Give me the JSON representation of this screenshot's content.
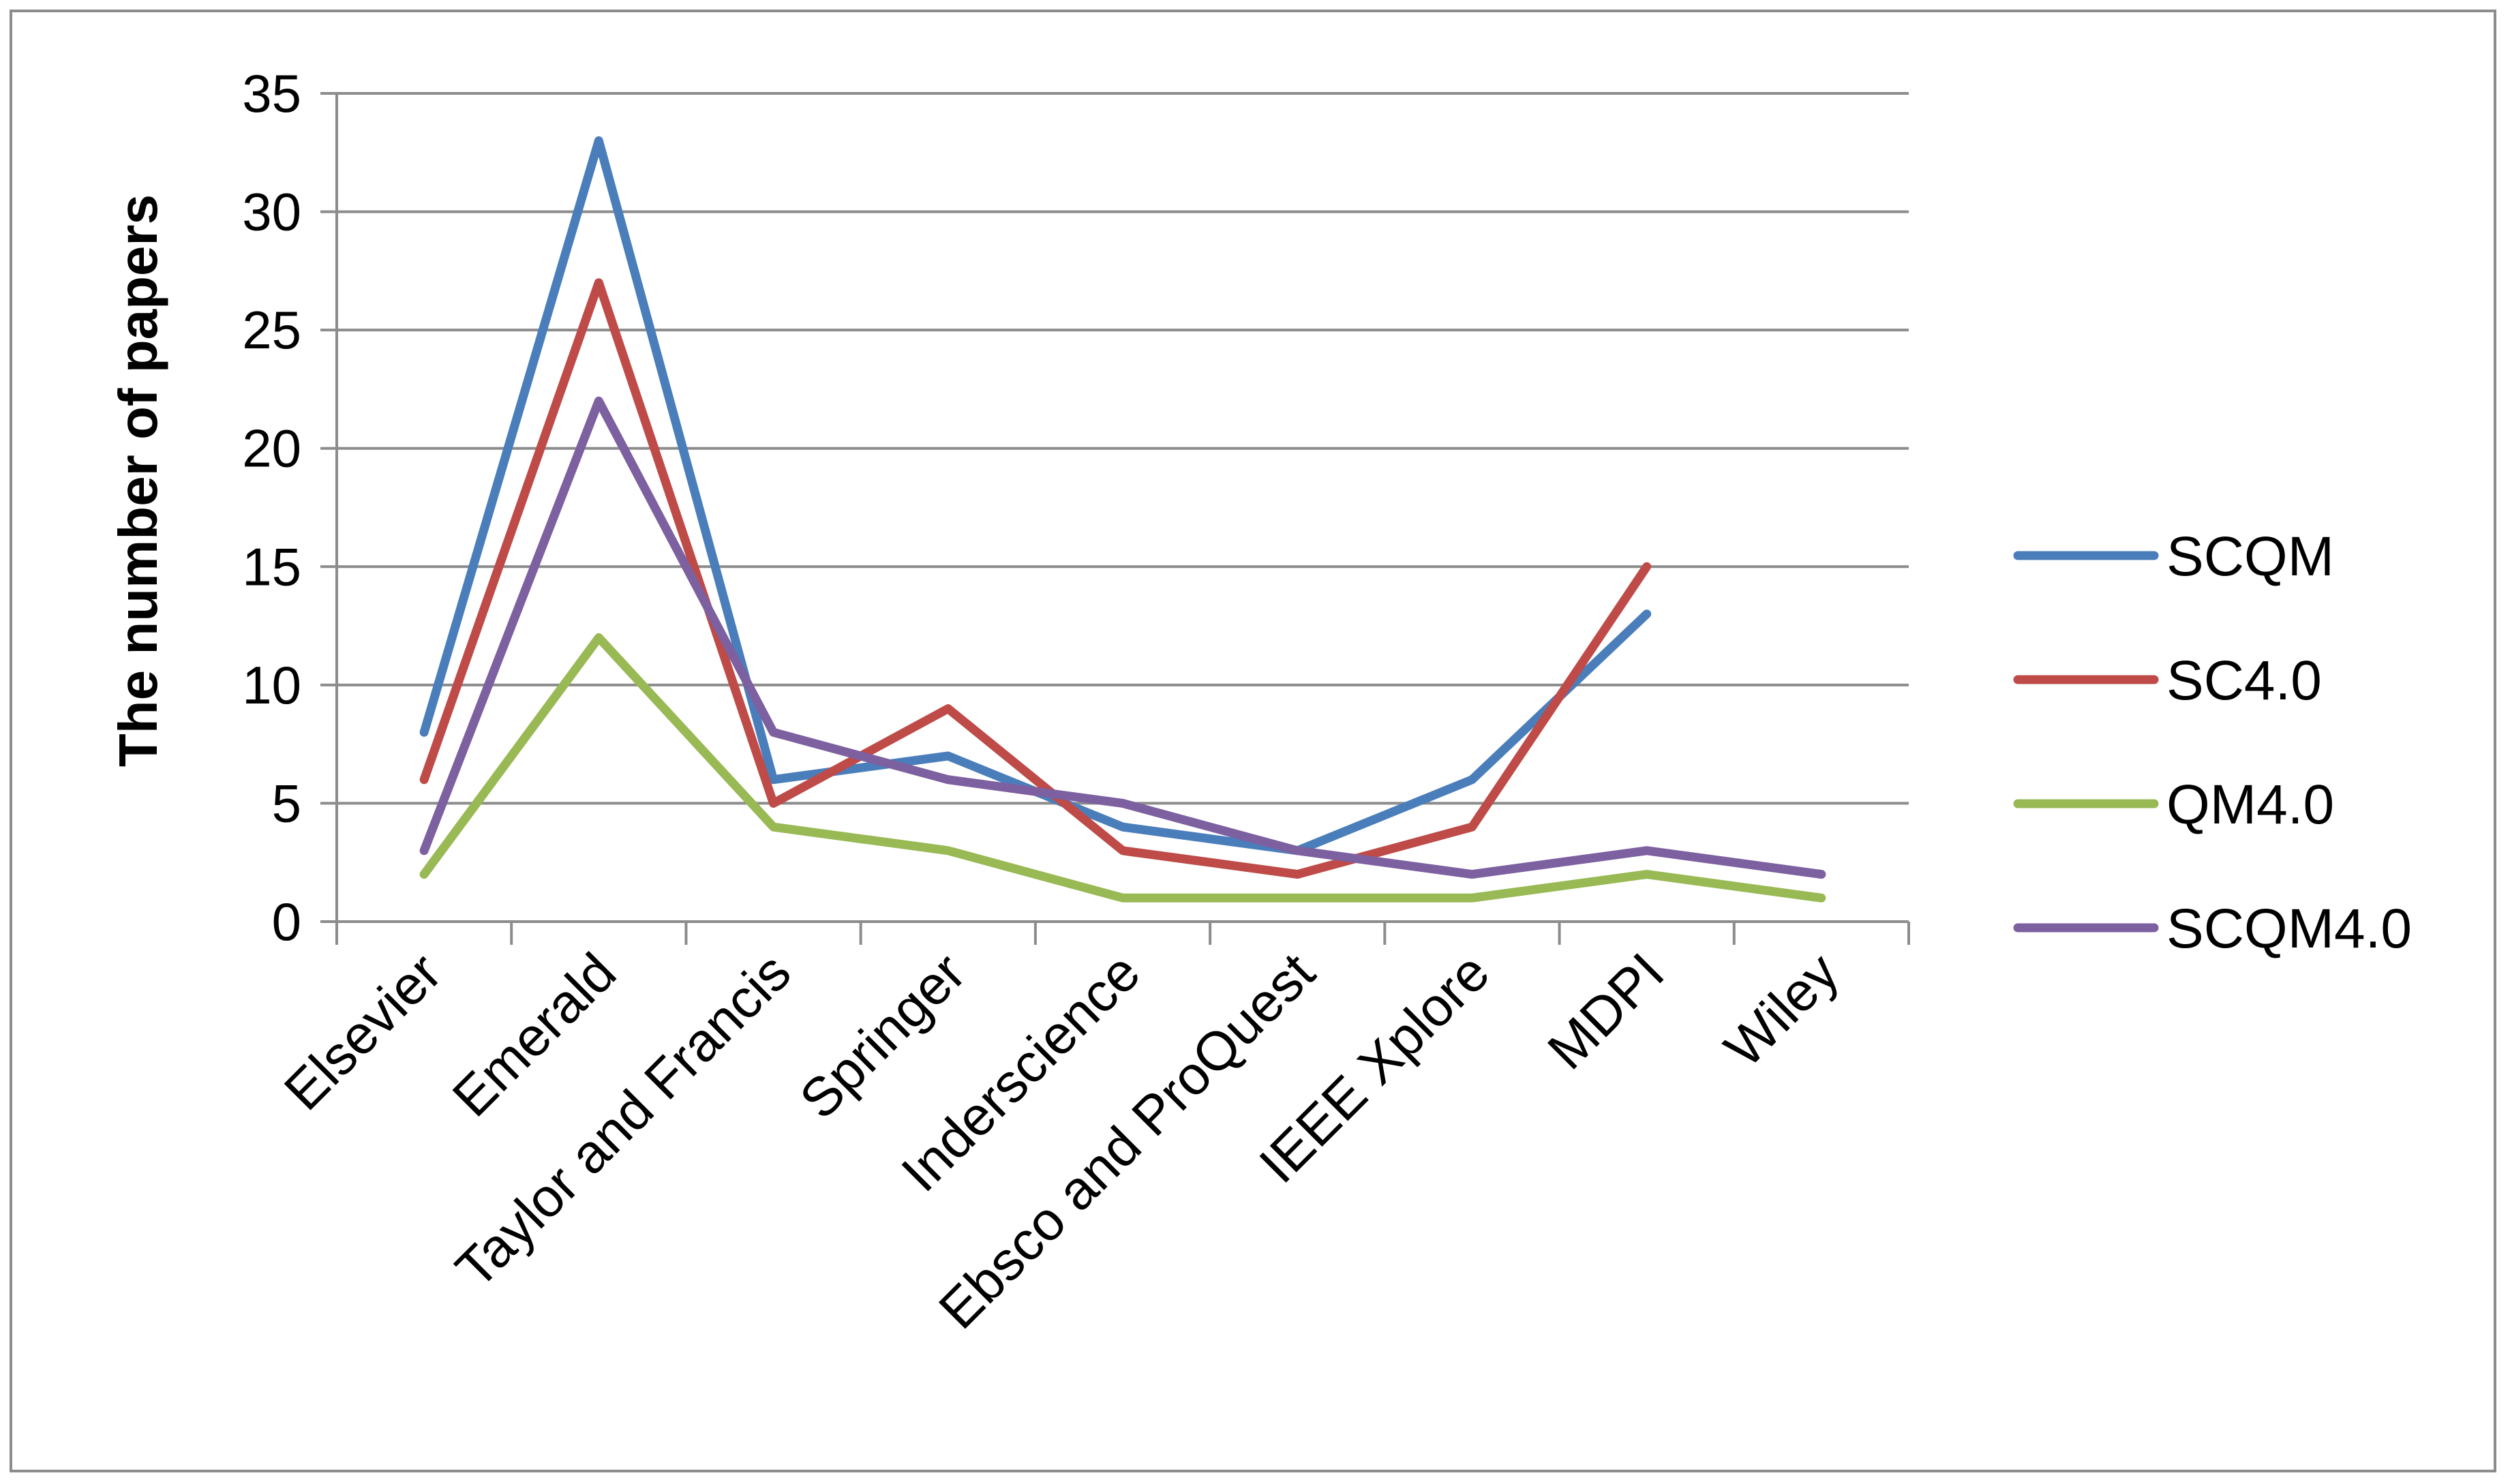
{
  "chart_data": {
    "type": "line",
    "title": "",
    "xlabel": "",
    "ylabel": "The number of papers",
    "ylim": [
      0,
      35
    ],
    "yticks": [
      0,
      5,
      10,
      15,
      20,
      25,
      30,
      35
    ],
    "grid": true,
    "legend_position": "right",
    "categories": [
      "Elsevier",
      "Emerald",
      "Taylor and Francis",
      "Springer",
      "Inderscience",
      "Ebsco and ProQuest",
      "IEEE Xplore",
      "MDPI",
      "Wiley"
    ],
    "series": [
      {
        "name": "SCQM",
        "color": "#4a7ebb",
        "values": [
          8,
          33,
          6,
          7,
          4,
          3,
          6,
          13,
          null
        ]
      },
      {
        "name": "SC4.0",
        "color": "#be4b48",
        "values": [
          6,
          27,
          5,
          9,
          3,
          2,
          4,
          15,
          null
        ]
      },
      {
        "name": "QM4.0",
        "color": "#98b954",
        "values": [
          2,
          12,
          4,
          3,
          1,
          1,
          1,
          2,
          1
        ]
      },
      {
        "name": "SCQM4.0",
        "color": "#7d60a0",
        "values": [
          3,
          22,
          8,
          6,
          5,
          3,
          2,
          3,
          2
        ]
      }
    ]
  }
}
